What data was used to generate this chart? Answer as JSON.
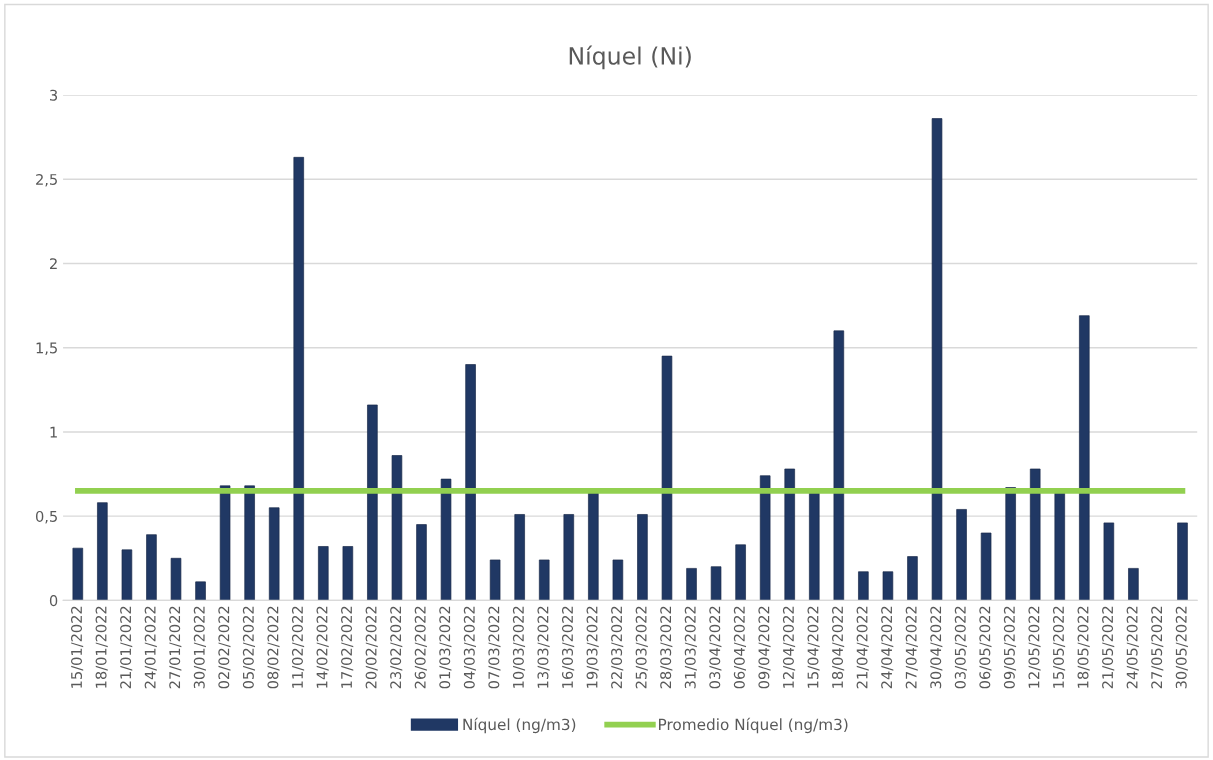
{
  "chart_data": {
    "type": "bar",
    "title": "Níquel (Ni)",
    "categories": [
      "15/01/2022",
      "18/01/2022",
      "21/01/2022",
      "24/01/2022",
      "27/01/2022",
      "30/01/2022",
      "02/02/2022",
      "05/02/2022",
      "08/02/2022",
      "11/02/2022",
      "14/02/2022",
      "17/02/2022",
      "20/02/2022",
      "23/02/2022",
      "26/02/2022",
      "01/03/2022",
      "04/03/2022",
      "07/03/2022",
      "10/03/2022",
      "13/03/2022",
      "16/03/2022",
      "19/03/2022",
      "22/03/2022",
      "25/03/2022",
      "28/03/2022",
      "31/03/2022",
      "03/04/2022",
      "06/04/2022",
      "09/04/2022",
      "12/04/2022",
      "15/04/2022",
      "18/04/2022",
      "21/04/2022",
      "24/04/2022",
      "27/04/2022",
      "30/04/2022",
      "03/05/2022",
      "06/05/2022",
      "09/05/2022",
      "12/05/2022",
      "15/05/2022",
      "18/05/2022",
      "21/05/2022",
      "24/05/2022",
      "27/05/2022",
      "30/05/2022"
    ],
    "series": [
      {
        "name": "Níquel (ng/m3)",
        "color": "#203864",
        "values": [
          0.31,
          0.58,
          0.3,
          0.39,
          0.25,
          0.11,
          0.68,
          0.68,
          0.55,
          2.63,
          0.32,
          0.32,
          1.16,
          0.86,
          0.45,
          0.72,
          1.4,
          0.24,
          0.51,
          0.24,
          0.51,
          0.64,
          0.24,
          0.51,
          1.45,
          0.19,
          0.2,
          0.33,
          0.74,
          0.78,
          0.64,
          1.6,
          0.17,
          0.17,
          0.26,
          2.86,
          0.54,
          0.4,
          0.67,
          0.78,
          0.64,
          1.69,
          0.46,
          0.19,
          null,
          0.46
        ]
      },
      {
        "name": "Promedio Níquel (ng/m3)",
        "type": "line",
        "color": "#92d050",
        "values": [
          0.65,
          0.65,
          0.65,
          0.65,
          0.65,
          0.65,
          0.65,
          0.65,
          0.65,
          0.65,
          0.65,
          0.65,
          0.65,
          0.65,
          0.65,
          0.65,
          0.65,
          0.65,
          0.65,
          0.65,
          0.65,
          0.65,
          0.65,
          0.65,
          0.65,
          0.65,
          0.65,
          0.65,
          0.65,
          0.65,
          0.65,
          0.65,
          0.65,
          0.65,
          0.65,
          0.65,
          0.65,
          0.65,
          0.65,
          0.65,
          0.65,
          0.65,
          0.65,
          0.65,
          0.65,
          0.65
        ]
      }
    ],
    "ylim": [
      0,
      3
    ],
    "yticks": [
      0,
      {
        "value": 0.5,
        "label": "0,5"
      },
      1,
      {
        "value": 1.5,
        "label": "1,5"
      },
      2,
      {
        "value": 2.5,
        "label": "2,5"
      },
      3
    ],
    "grid": "y",
    "legend": "bottom",
    "marker": "none",
    "line_style": "solid"
  }
}
